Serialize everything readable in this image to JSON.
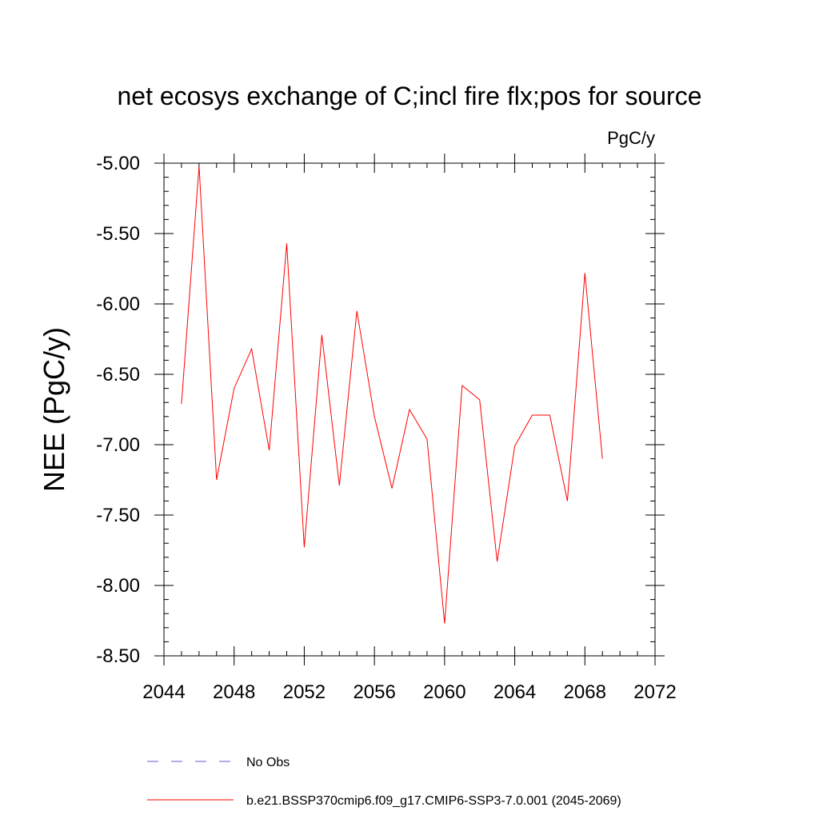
{
  "chart_data": {
    "type": "line",
    "title": "net ecosys exchange of C;incl fire flx;pos for source",
    "units": "PgC/y",
    "xlabel": "",
    "ylabel": "NEE  (PgC/y)",
    "xlim": [
      2044,
      2072
    ],
    "ylim": [
      -8.5,
      -5.0
    ],
    "x_ticks": [
      2044,
      2048,
      2052,
      2056,
      2060,
      2064,
      2068,
      2072
    ],
    "x_tick_labels": [
      "2044",
      "2048",
      "2052",
      "2056",
      "2060",
      "2064",
      "2068",
      "2072"
    ],
    "y_ticks": [
      -5.0,
      -5.5,
      -6.0,
      -6.5,
      -7.0,
      -7.5,
      -8.0,
      -8.5
    ],
    "y_tick_labels": [
      "-5.00",
      "-5.50",
      "-6.00",
      "-6.50",
      "-7.00",
      "-7.50",
      "-8.00",
      "-8.50"
    ],
    "grid": false,
    "legend_position": "bottom",
    "series": [
      {
        "name": "b.e21.BSSP370cmip6.f09_g17.CMIP6-SSP3-7.0.001 (2045-2069)",
        "color": "#ff0000",
        "style": "solid",
        "x": [
          2045,
          2046,
          2047,
          2048,
          2049,
          2050,
          2051,
          2052,
          2053,
          2054,
          2055,
          2056,
          2057,
          2058,
          2059,
          2060,
          2061,
          2062,
          2063,
          2064,
          2065,
          2066,
          2067,
          2068,
          2069
        ],
        "values": [
          -6.71,
          -5.02,
          -7.25,
          -6.6,
          -6.32,
          -7.04,
          -5.57,
          -7.73,
          -6.22,
          -7.29,
          -6.05,
          -6.8,
          -7.31,
          -6.75,
          -6.96,
          -8.27,
          -6.58,
          -6.68,
          -7.83,
          -7.01,
          -6.79,
          -6.79,
          -7.4,
          -5.78,
          -7.1
        ]
      }
    ],
    "legend": [
      {
        "label": "No Obs",
        "color": "#6a5acd",
        "style": "dashed"
      },
      {
        "label": "b.e21.BSSP370cmip6.f09_g17.CMIP6-SSP3-7.0.001 (2045-2069)",
        "color": "#ff0000",
        "style": "solid"
      }
    ]
  }
}
